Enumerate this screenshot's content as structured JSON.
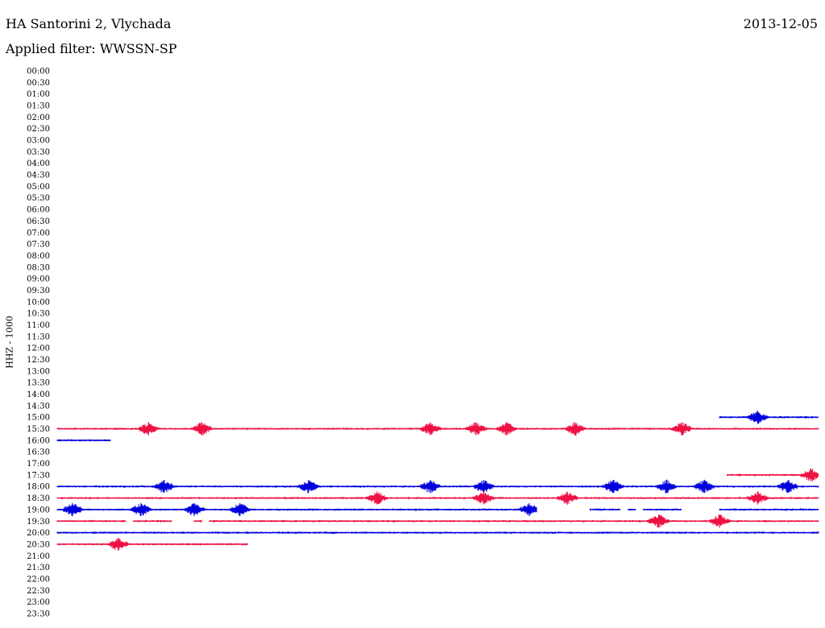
{
  "header": {
    "station": "HA Santorini 2, Vlychada",
    "date": "2013-12-05",
    "filter": "Applied filter: WWSSN-SP"
  },
  "colors": {
    "blue": "#0000dd",
    "red": "#ee1144",
    "black": "#000000"
  },
  "chart_data": {
    "type": "line",
    "ylabel": "HHZ - 1000",
    "x_range_minutes": [
      0,
      30
    ],
    "row_interval_minutes": 30,
    "time_labels": [
      "00:00",
      "00:30",
      "01:00",
      "01:30",
      "02:00",
      "02:30",
      "03:00",
      "03:30",
      "04:00",
      "04:30",
      "05:00",
      "05:30",
      "06:00",
      "06:30",
      "07:00",
      "07:30",
      "08:00",
      "08:30",
      "09:00",
      "09:30",
      "10:00",
      "10:30",
      "11:00",
      "11:30",
      "12:00",
      "12:30",
      "13:00",
      "13:30",
      "14:00",
      "14:30",
      "15:00",
      "15:30",
      "16:00",
      "16:30",
      "17:00",
      "17:30",
      "18:00",
      "18:30",
      "19:00",
      "19:30",
      "20:00",
      "20:30",
      "21:00",
      "21:30",
      "22:00",
      "22:30",
      "23:00",
      "23:30"
    ],
    "traces": [
      {
        "row": 30,
        "color": "blue",
        "segments": [
          [
            0.87,
            1.0
          ]
        ],
        "events": [
          0.92
        ]
      },
      {
        "row": 31,
        "color": "red",
        "segments": [
          [
            0.0,
            1.0
          ]
        ],
        "events": [
          0.12,
          0.19,
          0.49,
          0.55,
          0.59,
          0.68,
          0.82
        ]
      },
      {
        "row": 32,
        "color": "blue",
        "segments": [
          [
            0.0,
            0.07
          ]
        ],
        "events": []
      },
      {
        "row": 35,
        "color": "red",
        "segments": [
          [
            0.88,
            1.0
          ]
        ],
        "events": [
          0.99
        ]
      },
      {
        "row": 36,
        "color": "blue",
        "segments": [
          [
            0.0,
            1.0
          ]
        ],
        "events": [
          0.14,
          0.33,
          0.49,
          0.56,
          0.73,
          0.8,
          0.85,
          0.96
        ]
      },
      {
        "row": 37,
        "color": "red",
        "segments": [
          [
            0.0,
            1.0
          ]
        ],
        "events": [
          0.42,
          0.56,
          0.67,
          0.92
        ]
      },
      {
        "row": 38,
        "color": "blue",
        "segments": [
          [
            0.0,
            0.63
          ],
          [
            0.7,
            0.74
          ],
          [
            0.75,
            0.76
          ],
          [
            0.77,
            0.82
          ],
          [
            0.87,
            0.92
          ],
          [
            0.92,
            1.0
          ]
        ],
        "events": [
          0.02,
          0.11,
          0.18,
          0.24,
          0.62
        ]
      },
      {
        "row": 39,
        "color": "red",
        "segments": [
          [
            0.0,
            0.09
          ],
          [
            0.1,
            0.15
          ],
          [
            0.18,
            0.19
          ],
          [
            0.2,
            1.0
          ]
        ],
        "events": [
          0.79,
          0.87
        ]
      },
      {
        "row": 40,
        "color": "blue",
        "segments": [
          [
            0.0,
            1.0
          ]
        ],
        "events": []
      },
      {
        "row": 41,
        "color": "red",
        "segments": [
          [
            0.0,
            0.25
          ]
        ],
        "events": [
          0.08
        ]
      }
    ]
  }
}
